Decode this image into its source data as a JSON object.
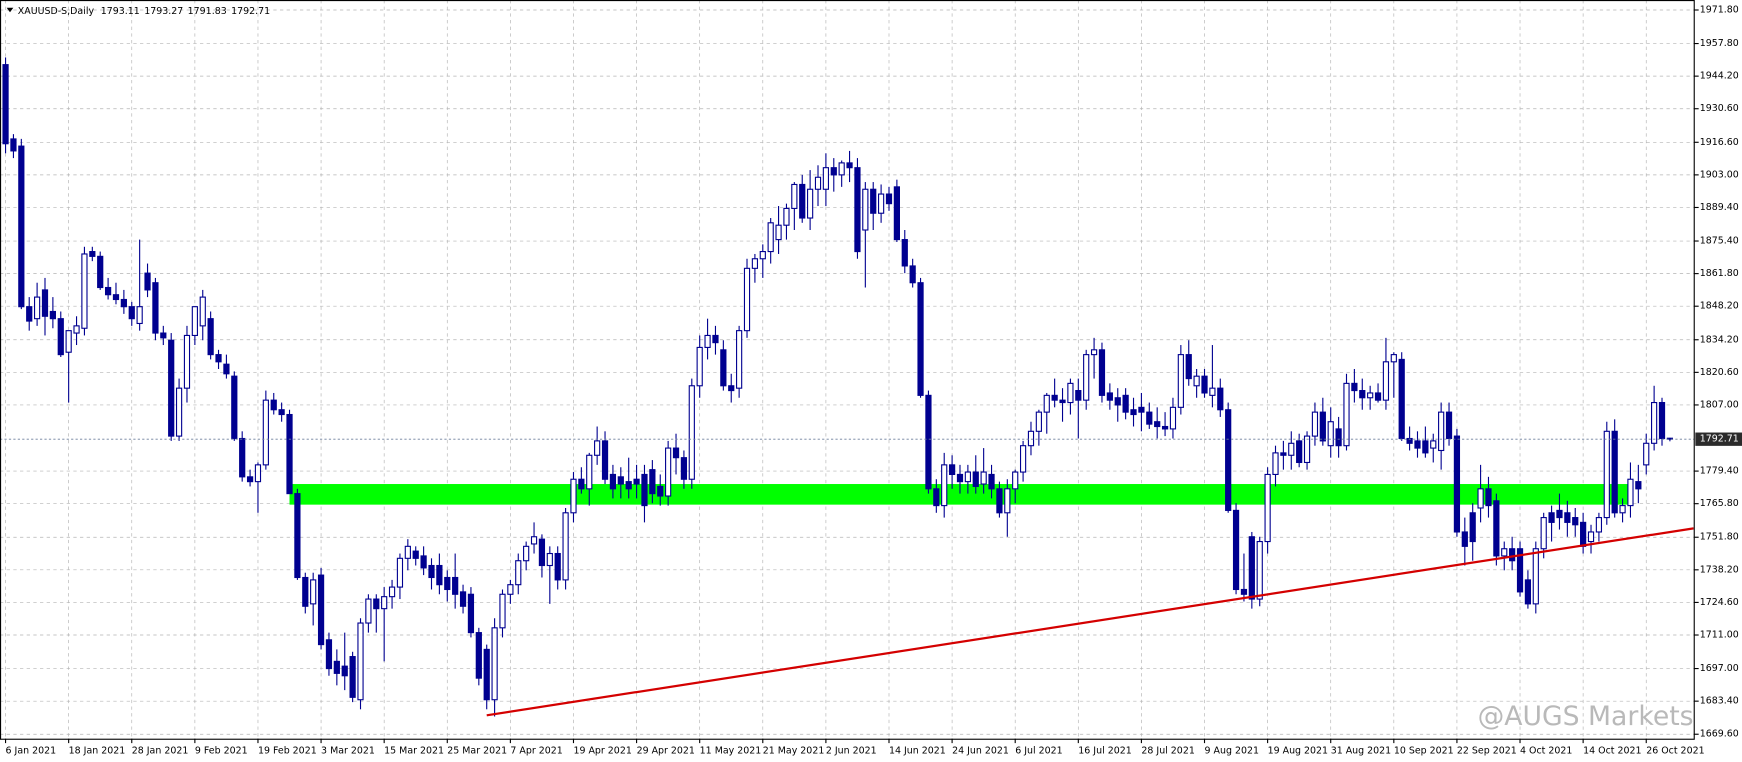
{
  "chart_data": {
    "type": "candlestick",
    "title": "XAUUSD-S,Daily",
    "watermark": "@AUGS Markets",
    "up_color": "#ffffff",
    "down_color": "#000090",
    "line_color": "#000090",
    "grid": true,
    "ylim": [
      1669.6,
      1971.8
    ],
    "yticks": [
      {
        "value": 1971.8,
        "label": "1971.80"
      },
      {
        "value": 1957.8,
        "label": "1957.80"
      },
      {
        "value": 1944.2,
        "label": "1944.20"
      },
      {
        "value": 1930.6,
        "label": "1930.60"
      },
      {
        "value": 1916.6,
        "label": "1916.60"
      },
      {
        "value": 1903.0,
        "label": "1903.00"
      },
      {
        "value": 1889.4,
        "label": "1889.40"
      },
      {
        "value": 1875.4,
        "label": "1875.40"
      },
      {
        "value": 1861.8,
        "label": "1861.80"
      },
      {
        "value": 1848.2,
        "label": "1848.20"
      },
      {
        "value": 1834.2,
        "label": "1834.20"
      },
      {
        "value": 1820.6,
        "label": "1820.60"
      },
      {
        "value": 1807.0,
        "label": "1807.00"
      },
      {
        "value": 1779.4,
        "label": "1779.40"
      },
      {
        "value": 1765.8,
        "label": "1765.80"
      },
      {
        "value": 1751.8,
        "label": "1751.80"
      },
      {
        "value": 1738.2,
        "label": "1738.20"
      },
      {
        "value": 1724.6,
        "label": "1724.60"
      },
      {
        "value": 1711.0,
        "label": "1711.00"
      },
      {
        "value": 1697.0,
        "label": "1697.00"
      },
      {
        "value": 1683.4,
        "label": "1683.40"
      },
      {
        "value": 1669.6,
        "label": "1669.60"
      }
    ],
    "xticks": [
      {
        "value": 0,
        "label": "6 Jan 2021"
      },
      {
        "value": 8,
        "label": "18 Jan 2021"
      },
      {
        "value": 16,
        "label": "28 Jan 2021"
      },
      {
        "value": 24,
        "label": "9 Feb 2021"
      },
      {
        "value": 32,
        "label": "19 Feb 2021"
      },
      {
        "value": 40,
        "label": "3 Mar 2021"
      },
      {
        "value": 48,
        "label": "15 Mar 2021"
      },
      {
        "value": 56,
        "label": "25 Mar 2021"
      },
      {
        "value": 64,
        "label": "7 Apr 2021"
      },
      {
        "value": 72,
        "label": "19 Apr 2021"
      },
      {
        "value": 80,
        "label": "29 Apr 2021"
      },
      {
        "value": 88,
        "label": "11 May 2021"
      },
      {
        "value": 96,
        "label": "21 May 2021"
      },
      {
        "value": 104,
        "label": "2 Jun 2021"
      },
      {
        "value": 112,
        "label": "14 Jun 2021"
      },
      {
        "value": 120,
        "label": "24 Jun 2021"
      },
      {
        "value": 128,
        "label": "6 Jul 2021"
      },
      {
        "value": 136,
        "label": "16 Jul 2021"
      },
      {
        "value": 144,
        "label": "28 Jul 2021"
      },
      {
        "value": 152,
        "label": "9 Aug 2021"
      },
      {
        "value": 160,
        "label": "19 Aug 2021"
      },
      {
        "value": 168,
        "label": "31 Aug 2021"
      },
      {
        "value": 176,
        "label": "10 Sep 2021"
      },
      {
        "value": 184,
        "label": "22 Sep 2021"
      },
      {
        "value": 192,
        "label": "4 Oct 2021"
      },
      {
        "value": 200,
        "label": "14 Oct 2021"
      },
      {
        "value": 208,
        "label": "26 Oct 2021"
      }
    ],
    "open": [
      1949,
      1918,
      1915,
      1848,
      1843,
      1855,
      1846,
      1843,
      1829,
      1837,
      1839,
      1871,
      1869,
      1856,
      1853,
      1851,
      1848,
      1841,
      1862,
      1858,
      1837,
      1834,
      1794,
      1814,
      1836,
      1840,
      1843,
      1828,
      1824,
      1819,
      1793,
      1777,
      1775,
      1782,
      1809,
      1805,
      1803,
      1770,
      1735,
      1724,
      1736,
      1709,
      1700,
      1698,
      1702,
      1684,
      1716,
      1726,
      1722,
      1727,
      1731,
      1743,
      1746,
      1744,
      1740,
      1740,
      1735,
      1735,
      1729,
      1728,
      1712,
      1705,
      1684,
      1714,
      1728,
      1732,
      1742,
      1749,
      1751,
      1740,
      1745,
      1734,
      1762,
      1776,
      1772,
      1786,
      1792,
      1778,
      1777,
      1775,
      1776,
      1778,
      1780,
      1773,
      1769,
      1789,
      1785,
      1776,
      1815,
      1831,
      1836,
      1830,
      1815,
      1814,
      1838,
      1864,
      1868,
      1871,
      1876,
      1882,
      1889,
      1899,
      1885,
      1897,
      1897,
      1906,
      1903,
      1908,
      1906,
      1880,
      1897,
      1887,
      1895,
      1898,
      1876,
      1865,
      1858,
      1811,
      1772,
      1765,
      1782,
      1778,
      1775,
      1779,
      1774,
      1778,
      1772,
      1762,
      1772,
      1779,
      1790,
      1796,
      1804,
      1811,
      1809,
      1808,
      1813,
      1809,
      1828,
      1830,
      1812,
      1810,
      1811,
      1805,
      1806,
      1804,
      1800,
      1798,
      1797,
      1806,
      1828,
      1815,
      1819,
      1811,
      1814,
      1805,
      1763,
      1730,
      1752,
      1726,
      1750,
      1778,
      1787,
      1786,
      1792,
      1783,
      1794,
      1804,
      1790,
      1797,
      1790,
      1816,
      1813,
      1810,
      1812,
      1809,
      1825,
      1826,
      1793,
      1792,
      1792,
      1789,
      1788,
      1804,
      1794,
      1754,
      1762,
      1764,
      1772,
      1767,
      1744,
      1747,
      1747,
      1734,
      1724,
      1747,
      1762,
      1763,
      1762,
      1760,
      1758,
      1750,
      1754,
      1760,
      1796,
      1762,
      1765,
      1775,
      1782,
      1791,
      1808,
      1793.11
    ],
    "high": [
      1952,
      1920,
      1918,
      1852,
      1858,
      1860,
      1852,
      1846,
      1838,
      1844,
      1873,
      1873,
      1871,
      1860,
      1858,
      1855,
      1850,
      1876,
      1866,
      1860,
      1840,
      1837,
      1818,
      1840,
      1848,
      1855,
      1846,
      1830,
      1828,
      1821,
      1796,
      1780,
      1783,
      1813,
      1812,
      1808,
      1805,
      1772,
      1737,
      1737,
      1739,
      1712,
      1705,
      1712,
      1704,
      1718,
      1728,
      1728,
      1731,
      1734,
      1745,
      1751,
      1748,
      1748,
      1743,
      1745,
      1738,
      1745,
      1732,
      1731,
      1714,
      1707,
      1718,
      1730,
      1734,
      1745,
      1750,
      1758,
      1753,
      1748,
      1748,
      1764,
      1779,
      1781,
      1787,
      1798,
      1796,
      1782,
      1781,
      1785,
      1782,
      1782,
      1784,
      1778,
      1792,
      1795,
      1788,
      1818,
      1836,
      1843,
      1840,
      1834,
      1820,
      1840,
      1868,
      1870,
      1874,
      1885,
      1890,
      1891,
      1900,
      1903,
      1905,
      1907,
      1912,
      1910,
      1909,
      1913,
      1910,
      1900,
      1900,
      1899,
      1898,
      1901,
      1880,
      1868,
      1860,
      1813,
      1776,
      1787,
      1786,
      1782,
      1782,
      1786,
      1789,
      1782,
      1775,
      1776,
      1780,
      1792,
      1800,
      1805,
      1812,
      1818,
      1814,
      1818,
      1818,
      1830,
      1835,
      1833,
      1816,
      1814,
      1814,
      1810,
      1812,
      1808,
      1806,
      1804,
      1810,
      1832,
      1834,
      1822,
      1822,
      1832,
      1818,
      1808,
      1766,
      1745,
      1754,
      1752,
      1781,
      1790,
      1792,
      1796,
      1795,
      1796,
      1808,
      1810,
      1806,
      1802,
      1820,
      1822,
      1818,
      1815,
      1816,
      1835,
      1829,
      1829,
      1798,
      1796,
      1798,
      1795,
      1808,
      1808,
      1797,
      1760,
      1766,
      1782,
      1777,
      1770,
      1750,
      1752,
      1750,
      1738,
      1750,
      1762,
      1765,
      1770,
      1767,
      1764,
      1762,
      1757,
      1762,
      1800,
      1801,
      1768,
      1783,
      1782,
      1795,
      1815,
      1810,
      1793.27
    ],
    "low": [
      1912,
      1910,
      1847,
      1838,
      1840,
      1836,
      1839,
      1827,
      1808,
      1832,
      1836,
      1867,
      1855,
      1851,
      1849,
      1845,
      1840,
      1838,
      1852,
      1834,
      1832,
      1792,
      1792,
      1808,
      1832,
      1834,
      1826,
      1822,
      1818,
      1792,
      1775,
      1773,
      1762,
      1780,
      1803,
      1800,
      1770,
      1734,
      1720,
      1715,
      1705,
      1694,
      1690,
      1688,
      1683,
      1680,
      1712,
      1712,
      1700,
      1722,
      1726,
      1738,
      1740,
      1736,
      1730,
      1728,
      1725,
      1722,
      1720,
      1710,
      1690,
      1680,
      1677,
      1710,
      1724,
      1728,
      1738,
      1745,
      1735,
      1724,
      1730,
      1730,
      1758,
      1770,
      1765,
      1782,
      1774,
      1768,
      1768,
      1768,
      1768,
      1758,
      1766,
      1765,
      1765,
      1778,
      1772,
      1772,
      1810,
      1826,
      1828,
      1813,
      1808,
      1810,
      1835,
      1858,
      1860,
      1866,
      1870,
      1876,
      1880,
      1883,
      1880,
      1890,
      1890,
      1896,
      1898,
      1900,
      1868,
      1856,
      1880,
      1883,
      1888,
      1875,
      1862,
      1856,
      1810,
      1770,
      1762,
      1760,
      1772,
      1770,
      1770,
      1770,
      1770,
      1768,
      1760,
      1752,
      1766,
      1775,
      1786,
      1790,
      1795,
      1806,
      1800,
      1803,
      1793,
      1805,
      1818,
      1808,
      1805,
      1800,
      1801,
      1798,
      1796,
      1797,
      1793,
      1794,
      1793,
      1803,
      1815,
      1810,
      1810,
      1806,
      1802,
      1762,
      1728,
      1725,
      1722,
      1723,
      1745,
      1773,
      1780,
      1780,
      1781,
      1780,
      1790,
      1790,
      1785,
      1785,
      1788,
      1808,
      1805,
      1805,
      1808,
      1805,
      1810,
      1792,
      1788,
      1785,
      1785,
      1783,
      1780,
      1790,
      1752,
      1740,
      1742,
      1758,
      1760,
      1740,
      1738,
      1738,
      1727,
      1722,
      1720,
      1743,
      1750,
      1755,
      1752,
      1752,
      1745,
      1745,
      1750,
      1757,
      1760,
      1758,
      1760,
      1766,
      1778,
      1788,
      1790,
      1791.83
    ],
    "close": [
      1916,
      1913,
      1848,
      1842,
      1852,
      1844,
      1843,
      1828,
      1838,
      1840,
      1870,
      1869,
      1856,
      1853,
      1851,
      1848,
      1843,
      1848,
      1855,
      1837,
      1835,
      1794,
      1814,
      1836,
      1848,
      1852,
      1828,
      1825,
      1820,
      1793,
      1777,
      1775,
      1782,
      1809,
      1805,
      1803,
      1770,
      1735,
      1723,
      1734,
      1707,
      1697,
      1695,
      1694,
      1685,
      1716,
      1726,
      1722,
      1727,
      1731,
      1743,
      1748,
      1743,
      1739,
      1735,
      1732,
      1730,
      1728,
      1723,
      1712,
      1693,
      1684,
      1714,
      1728,
      1732,
      1742,
      1748,
      1752,
      1740,
      1745,
      1734,
      1762,
      1776,
      1772,
      1786,
      1792,
      1776,
      1772,
      1774,
      1772,
      1774,
      1765,
      1770,
      1769,
      1789,
      1785,
      1776,
      1815,
      1831,
      1836,
      1833,
      1815,
      1813,
      1838,
      1864,
      1868,
      1871,
      1883,
      1882,
      1889,
      1899,
      1885,
      1897,
      1902,
      1906,
      1903,
      1908,
      1906,
      1871,
      1897,
      1887,
      1895,
      1891,
      1876,
      1865,
      1858,
      1811,
      1772,
      1765,
      1782,
      1778,
      1775,
      1779,
      1773,
      1779,
      1772,
      1762,
      1772,
      1779,
      1790,
      1796,
      1804,
      1811,
      1809,
      1808,
      1816,
      1809,
      1828,
      1830,
      1811,
      1809,
      1807,
      1804,
      1803,
      1804,
      1799,
      1798,
      1797,
      1806,
      1828,
      1818,
      1819,
      1812,
      1814,
      1805,
      1763,
      1730,
      1728,
      1726,
      1750,
      1778,
      1787,
      1786,
      1791,
      1783,
      1794,
      1804,
      1792,
      1800,
      1790,
      1816,
      1813,
      1810,
      1812,
      1809,
      1825,
      1828,
      1793,
      1791,
      1789,
      1787,
      1792,
      1804,
      1793,
      1754,
      1748,
      1750,
      1772,
      1765,
      1744,
      1747,
      1742,
      1729,
      1724,
      1747,
      1760,
      1758,
      1760,
      1758,
      1757,
      1748,
      1754,
      1760,
      1796,
      1762,
      1765,
      1776,
      1772,
      1791,
      1808,
      1793,
      1792.71
    ],
    "zone": {
      "x": [
        36,
        206
      ],
      "y": [
        1765.4,
        1774
      ],
      "color": "#00ff00"
    },
    "trendline": {
      "x": [
        61,
        214
      ],
      "y": [
        1677.5,
        1755.5
      ],
      "color": "#d40000"
    }
  }
}
